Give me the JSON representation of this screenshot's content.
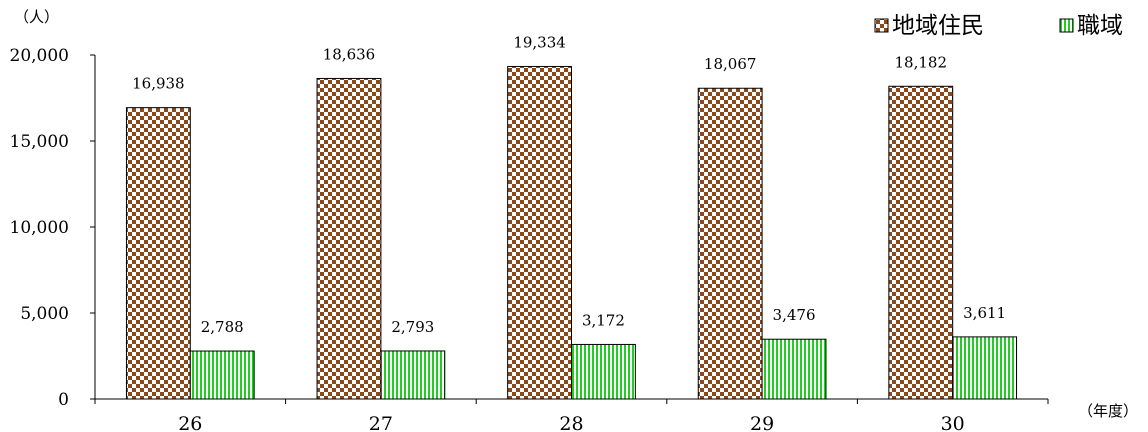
{
  "chart_data": {
    "type": "bar",
    "y_unit_label": "（人）",
    "x_unit_label": "（年度）",
    "categories": [
      "26",
      "27",
      "28",
      "29",
      "30"
    ],
    "series": [
      {
        "name": "地域住民",
        "values": [
          16938,
          18636,
          19334,
          18067,
          18182
        ],
        "labels": [
          "16,938",
          "18,636",
          "19,334",
          "18,067",
          "18,182"
        ],
        "color": "#8B4A1C",
        "pattern": "checker"
      },
      {
        "name": "職域",
        "values": [
          2788,
          2793,
          3172,
          3476,
          3611
        ],
        "labels": [
          "2,788",
          "2,793",
          "3,172",
          "3,476",
          "3,611"
        ],
        "color": "#22CC22",
        "pattern": "vertical-stripes"
      }
    ],
    "yticks": [
      0,
      5000,
      10000,
      15000,
      20000
    ],
    "ytick_labels": [
      "0",
      "5,000",
      "10,000",
      "15,000",
      "20,000"
    ],
    "ylim": [
      0,
      20000
    ],
    "grid": false,
    "legend_position": "top-right"
  }
}
